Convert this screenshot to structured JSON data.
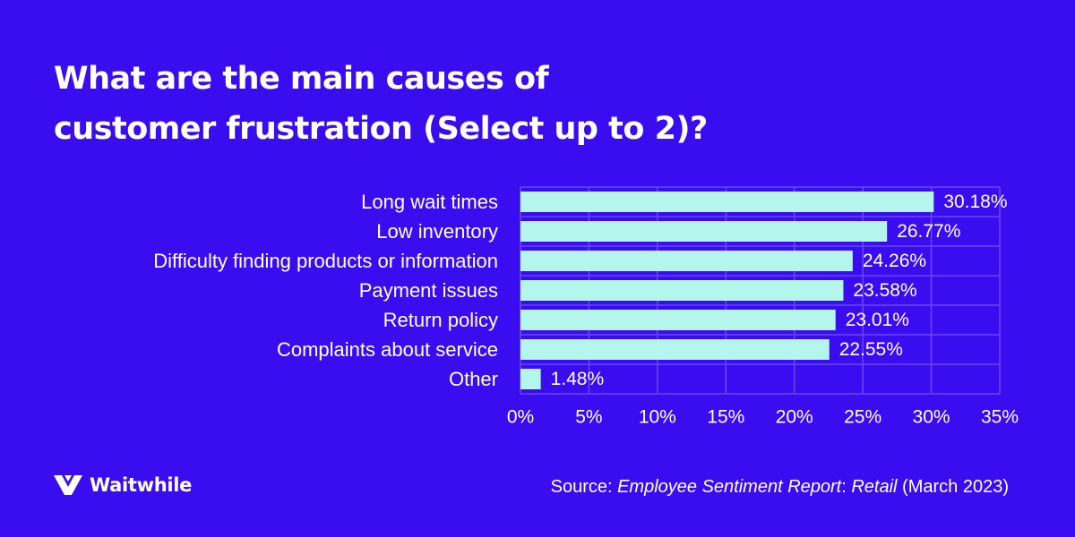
{
  "header": {
    "title_line1": "What are the main causes of",
    "title_line2": "customer frustration (Select up to 2)?"
  },
  "chart_data": {
    "type": "bar",
    "orientation": "horizontal",
    "categories": [
      "Long wait times",
      "Low inventory",
      "Difficulty finding products or information",
      "Payment issues",
      "Return policy",
      "Complaints about service",
      "Other"
    ],
    "values": [
      30.18,
      26.77,
      24.26,
      23.58,
      23.01,
      22.55,
      1.48
    ],
    "value_labels": [
      "30.18%",
      "26.77%",
      "24.26%",
      "23.58%",
      "23.01%",
      "22.55%",
      "1.48%"
    ],
    "xlim": [
      0,
      35
    ],
    "xticks": [
      0,
      5,
      10,
      15,
      20,
      25,
      30,
      35
    ],
    "xtick_labels": [
      "0%",
      "5%",
      "10%",
      "15%",
      "20%",
      "25%",
      "30%",
      "35%"
    ],
    "grid": true,
    "xlabel": "",
    "ylabel": ""
  },
  "footer": {
    "logo_text": "Waitwhile",
    "logo_icon": "waitwhile-logo-icon",
    "source_prefix": "Source: ",
    "source_title_part1": "Employee Sentiment Report",
    "source_colon": ": ",
    "source_title_part2": "Retail",
    "source_date": " (March 2023)"
  },
  "colors": {
    "background": "#3a0cf0",
    "bar": "#b5f6ec",
    "grid": "#6a48f4",
    "text": "#ffffff"
  }
}
